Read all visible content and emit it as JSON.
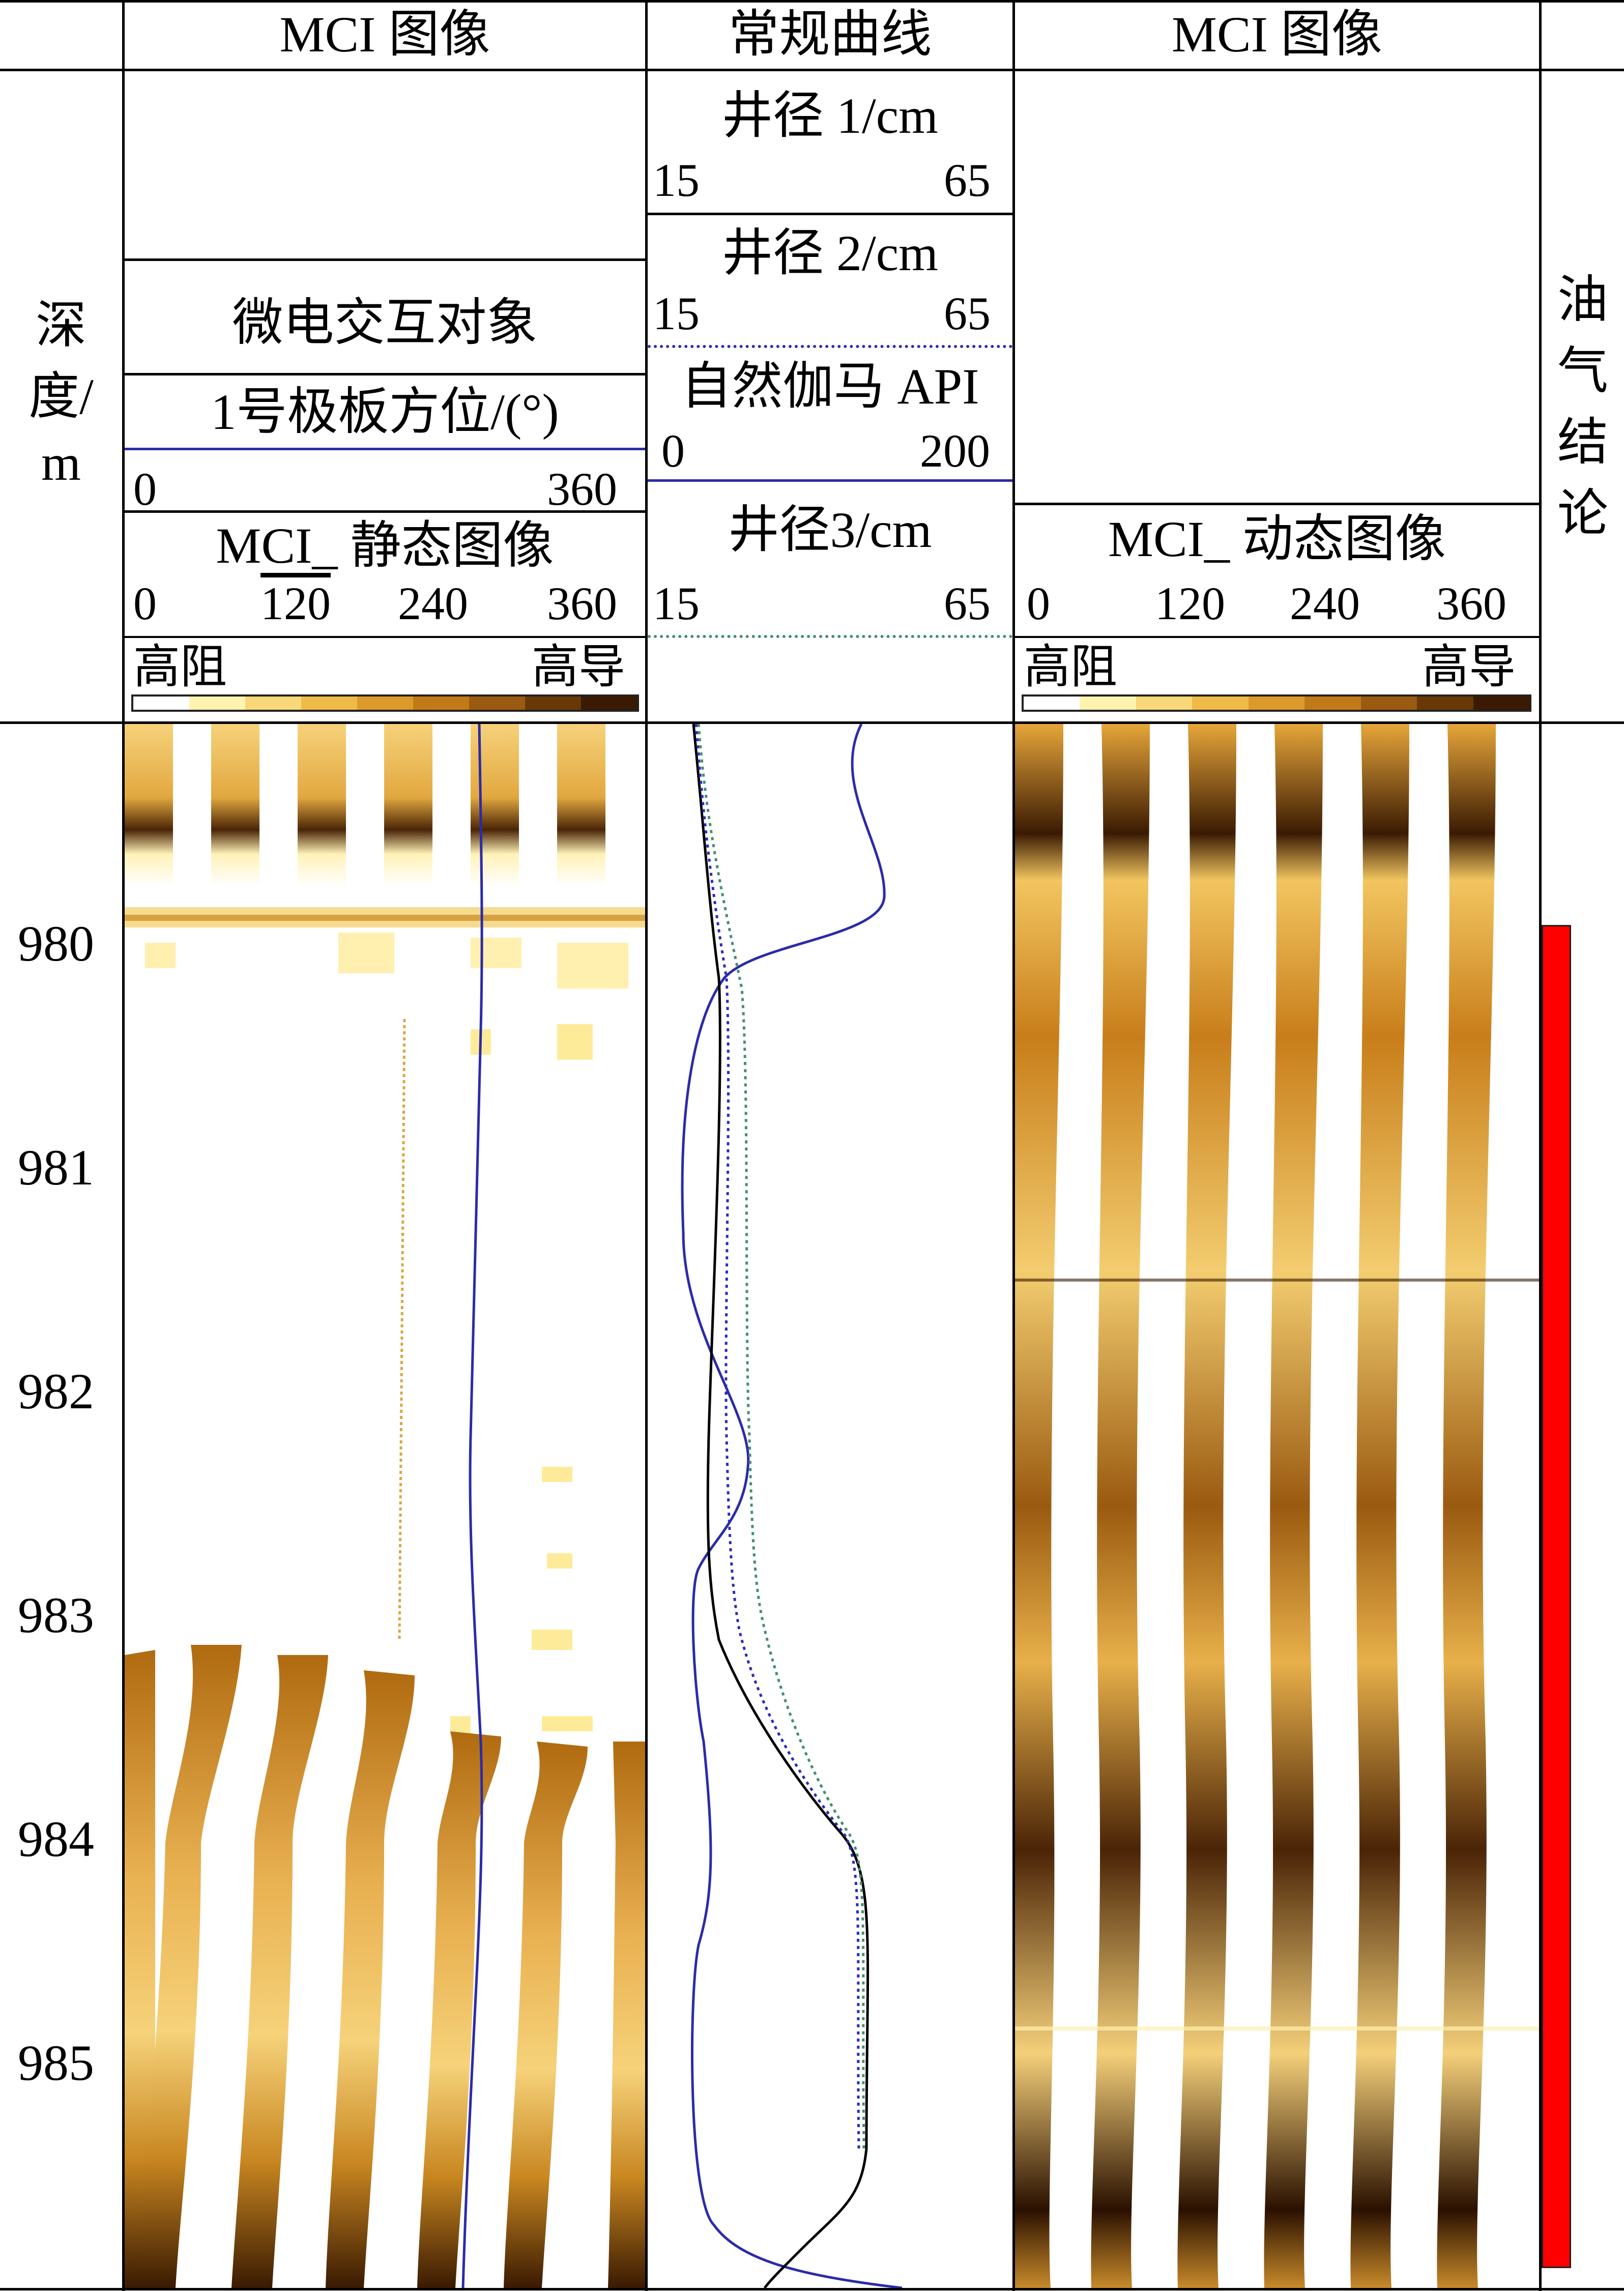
{
  "header": {
    "col_left_title": "MCI 图像",
    "col_mid_title": "常规曲线",
    "col_right_title": "MCI 图像",
    "depth_label_1": "深",
    "depth_label_2": "度/",
    "depth_label_3": "m",
    "conclusion_label": [
      "油",
      "气",
      "结",
      "论"
    ]
  },
  "left_track": {
    "micro_label": "微电交互对象",
    "pad_azimuth_label": "1号极板方位/(°)",
    "pad_azimuth_min": "0",
    "pad_azimuth_max": "360",
    "static_label": "MCI_ 静态图像",
    "ticks": [
      "0",
      "120",
      "240",
      "360"
    ],
    "scale_left": "高阻",
    "scale_right": "高导"
  },
  "mid_track": {
    "cal1_label": "井径 1/cm",
    "cal1_min": "15",
    "cal1_max": "65",
    "cal2_label": "井径 2/cm",
    "cal2_min": "15",
    "cal2_max": "65",
    "gr_label": "自然伽马 API",
    "gr_min": "0",
    "gr_max": "200",
    "cal3_label": "井径3/cm",
    "cal3_min": "15",
    "cal3_max": "65"
  },
  "right_track": {
    "dynamic_label": "MCI_ 动态图像",
    "ticks": [
      "0",
      "120",
      "240",
      "360"
    ],
    "scale_left": "高阻",
    "scale_right": "高导"
  },
  "depths": [
    "980",
    "981",
    "982",
    "983",
    "984",
    "985"
  ],
  "colors": {
    "gr_curve": "#2b2ba8",
    "cal1_curve": "#000000",
    "cal2_curve": "#2b2bb8",
    "cal3_curve": "#3f8f6f",
    "oil_gas_bar": "#ff0000",
    "image_light": "#fbe08a",
    "image_mid": "#c98a20",
    "image_dark": "#3a1a00"
  },
  "colorbar_stops": [
    "#ffffff",
    "#fff3b0",
    "#f8d878",
    "#efbb48",
    "#dc9a2a",
    "#c27a18",
    "#9a5a10",
    "#6a3808",
    "#3a1a02"
  ]
}
